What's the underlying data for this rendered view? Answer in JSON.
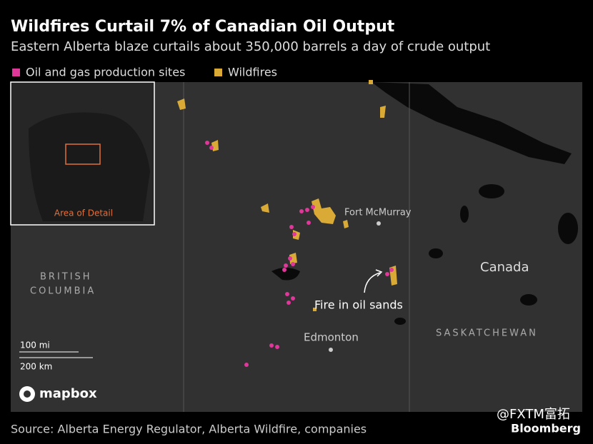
{
  "header": {
    "title": "Wildfires Curtail 7% of Canadian Oil Output",
    "subtitle": "Eastern Alberta blaze curtails about 350,000 barrels a day of crude output"
  },
  "legend": [
    {
      "label": "Oil and gas production sites",
      "color": "#e0379a"
    },
    {
      "label": "Wildfires",
      "color": "#d9aa36"
    }
  ],
  "map": {
    "inset_label": "Area of Detail",
    "places": [
      "Fort McMurray",
      "Canada",
      "Edmonton",
      "SASKATCHEWAN",
      "BRITISH",
      "COLUMBIA"
    ],
    "annotation": "Fire in oil sands",
    "scale": [
      "100 mi",
      "200 km"
    ],
    "attribution": "mapbox"
  },
  "footer": {
    "source": "Source: Alberta Energy Regulator, Alberta Wildfire, companies",
    "watermark": "@FXTM富拓",
    "brand": "Bloomberg"
  }
}
